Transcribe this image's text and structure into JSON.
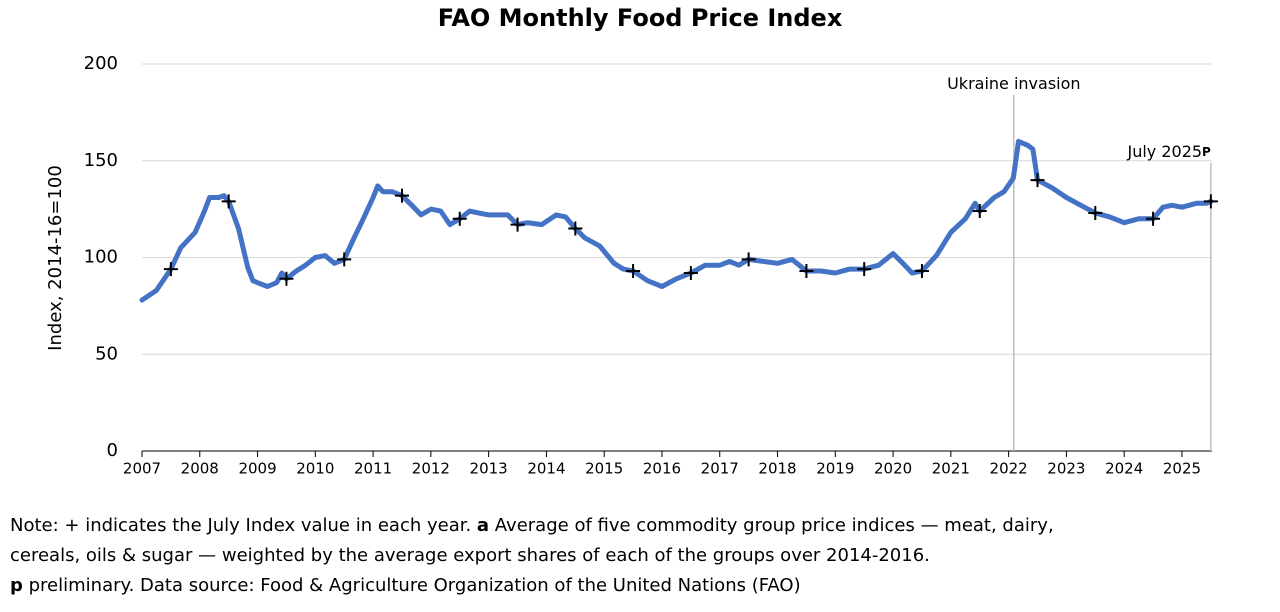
{
  "chart_data": {
    "type": "line",
    "title": "FAO Monthly Food Price Index",
    "ylabel": "Index, 2014-16=100",
    "xlim": [
      2007,
      2025.52
    ],
    "xticks": [
      2007,
      2008,
      2009,
      2010,
      2011,
      2012,
      2013,
      2014,
      2015,
      2016,
      2017,
      2018,
      2019,
      2020,
      2021,
      2022,
      2023,
      2024,
      2025
    ],
    "ylim": [
      0,
      200
    ],
    "yticks": [
      0,
      50,
      100,
      150,
      200
    ],
    "grid": true,
    "series": [
      {
        "color": "#4472c4",
        "x": [
          2007.0,
          2007.25,
          2007.5,
          2007.67,
          2007.92,
          2008.08,
          2008.17,
          2008.33,
          2008.42,
          2008.5,
          2008.67,
          2008.83,
          2008.92,
          2009.0,
          2009.17,
          2009.33,
          2009.42,
          2009.5,
          2009.67,
          2009.83,
          2010.0,
          2010.17,
          2010.33,
          2010.5,
          2010.67,
          2010.83,
          2011.0,
          2011.08,
          2011.17,
          2011.33,
          2011.5,
          2011.67,
          2011.83,
          2012.0,
          2012.17,
          2012.33,
          2012.5,
          2012.67,
          2012.83,
          2013.0,
          2013.33,
          2013.5,
          2013.67,
          2013.92,
          2014.17,
          2014.33,
          2014.5,
          2014.67,
          2014.92,
          2015.17,
          2015.33,
          2015.5,
          2015.75,
          2016.0,
          2016.25,
          2016.5,
          2016.75,
          2017.0,
          2017.17,
          2017.33,
          2017.5,
          2017.75,
          2018.0,
          2018.25,
          2018.5,
          2018.75,
          2019.0,
          2019.25,
          2019.5,
          2019.75,
          2020.0,
          2020.17,
          2020.33,
          2020.5,
          2020.75,
          2021.0,
          2021.25,
          2021.42,
          2021.5,
          2021.75,
          2021.92,
          2022.08,
          2022.17,
          2022.33,
          2022.42,
          2022.5,
          2022.75,
          2023.0,
          2023.25,
          2023.5,
          2023.75,
          2024.0,
          2024.25,
          2024.5,
          2024.67,
          2024.83,
          2025.0,
          2025.25,
          2025.42,
          2025.5
        ],
        "values": [
          78,
          83,
          94,
          105,
          113,
          124,
          131,
          131,
          132,
          129,
          115,
          95,
          88,
          87,
          85,
          87,
          92,
          89,
          93,
          96,
          100,
          101,
          97,
          99,
          110,
          120,
          131,
          137,
          134,
          134,
          132,
          127,
          122,
          125,
          124,
          117,
          120,
          124,
          123,
          122,
          122,
          117,
          118,
          117,
          122,
          121,
          115,
          110,
          106,
          97,
          94,
          93,
          88,
          85,
          89,
          92,
          96,
          96,
          98,
          96,
          99,
          98,
          97,
          99,
          93,
          93,
          92,
          94,
          94,
          96,
          102,
          97,
          92,
          93,
          101,
          113,
          120,
          128,
          124,
          131,
          134,
          141,
          160,
          158,
          156,
          140,
          136,
          131,
          127,
          123,
          121,
          118,
          120,
          120,
          126,
          127,
          126,
          128,
          128,
          129
        ]
      }
    ],
    "markers": {
      "marker": "+",
      "color": "#000000",
      "x": [
        2007.5,
        2008.5,
        2009.5,
        2010.5,
        2011.5,
        2012.5,
        2013.5,
        2014.5,
        2015.5,
        2016.5,
        2017.5,
        2018.5,
        2019.5,
        2020.5,
        2021.5,
        2022.5,
        2023.5,
        2024.5,
        2025.5
      ],
      "values": [
        94,
        129,
        89,
        99,
        132,
        120,
        117,
        115,
        93,
        92,
        99,
        93,
        94,
        93,
        124,
        140,
        123,
        120,
        129
      ]
    },
    "annotations": [
      {
        "text": "Ukraine invasion",
        "x": 2022.09
      },
      {
        "text": "July 2025",
        "suffix": "p",
        "x": 2025.5
      }
    ],
    "note": [
      [
        {
          "text": "Note: + indicates the July Index value in each year. ",
          "bold": false
        },
        {
          "text": "a",
          "bold": true
        },
        {
          "text": " Average of five commodity group price indices — meat, dairy,",
          "bold": false
        }
      ],
      [
        {
          "text": "cereals, oils & sugar — weighted by the average export shares of each of the groups over 2014-2016.",
          "bold": false
        }
      ],
      [
        {
          "text": "p",
          "bold": true
        },
        {
          "text": " preliminary. Data source: Food & Agriculture Organization of the United Nations (FAO)",
          "bold": false
        }
      ]
    ]
  }
}
